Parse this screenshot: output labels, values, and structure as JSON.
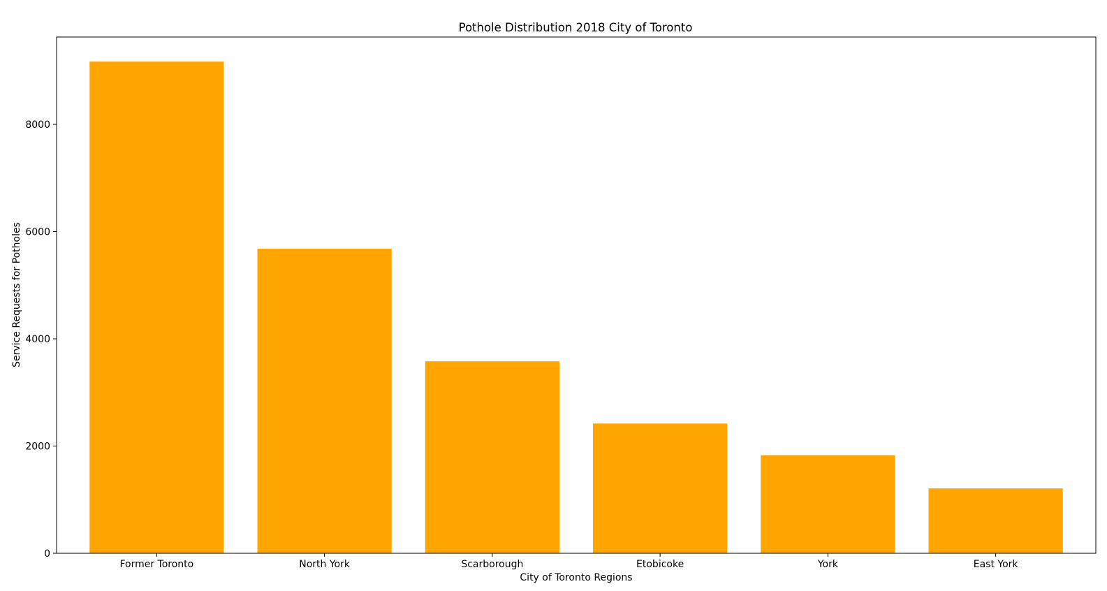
{
  "chart_data": {
    "type": "bar",
    "title": "Pothole Distribution 2018 City of Toronto",
    "xlabel": "City of Toronto Regions",
    "ylabel": "Service Requests for Potholes",
    "categories": [
      "Former Toronto",
      "North York",
      "Scarborough",
      "Etobicoke",
      "York",
      "East York"
    ],
    "values": [
      9170,
      5680,
      3580,
      2420,
      1830,
      1210
    ],
    "ylim": [
      0,
      9628.5
    ],
    "yticks": [
      0,
      2000,
      4000,
      6000,
      8000
    ],
    "ytick_labels": [
      "0",
      "2000",
      "4000",
      "6000",
      "8000"
    ],
    "bar_color": "#ffa500",
    "grid": false,
    "legend": "none"
  }
}
